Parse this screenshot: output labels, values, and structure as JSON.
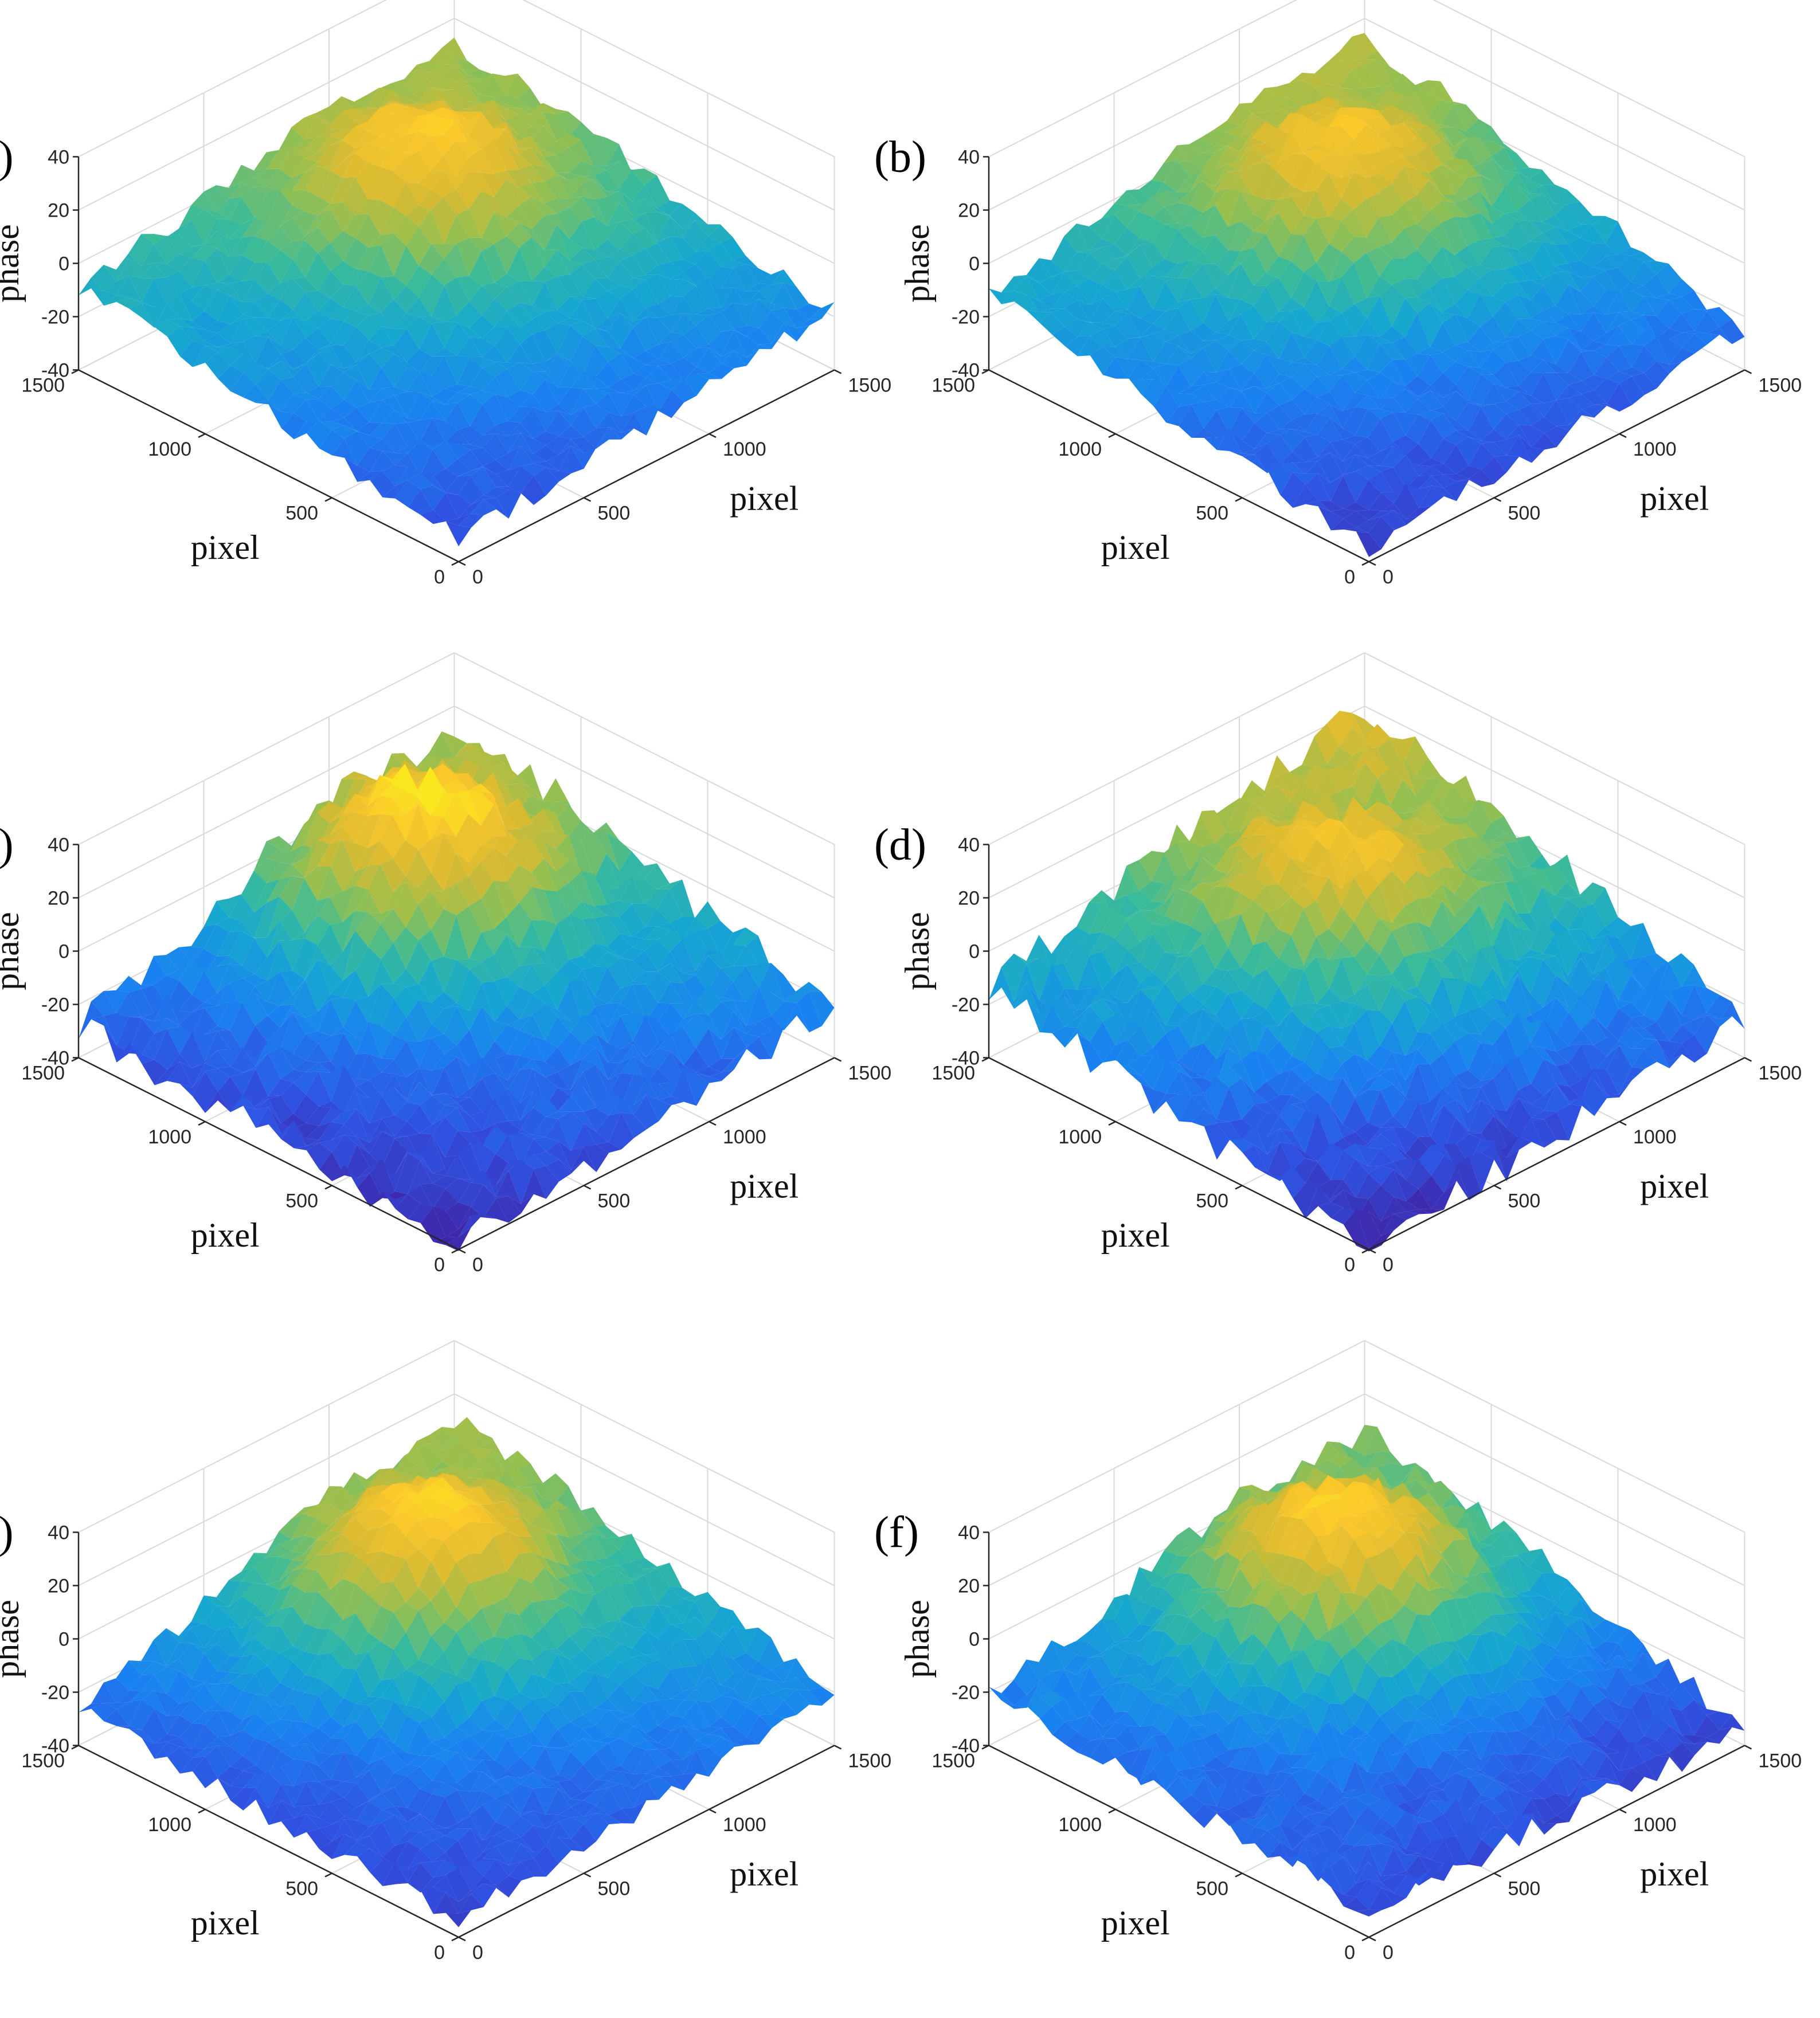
{
  "chart_data": [
    {
      "type": "surface",
      "panel_label": "(a)",
      "xlabel": "pixel",
      "ylabel": "pixel",
      "zlabel": "phase",
      "xlim": [
        0,
        1500
      ],
      "ylim": [
        0,
        1500
      ],
      "zlim": [
        -40,
        40
      ],
      "x_ticks": [
        "0",
        "500",
        "1000",
        "1500"
      ],
      "y_ticks": [
        "0",
        "500",
        "1000",
        "1500"
      ],
      "z_ticks": [
        "-40",
        "-20",
        "0",
        "20",
        "40"
      ],
      "surface": {
        "corner_x0y0": -32,
        "corner_x1y0": -18,
        "corner_x0y1": -8,
        "corner_x1y1": 10,
        "peak_x": 950,
        "peak_y": 1050,
        "peak_z": 28,
        "roughness": 4
      }
    },
    {
      "type": "surface",
      "panel_label": "(b)",
      "xlabel": "pixel",
      "ylabel": "pixel",
      "zlabel": "phase",
      "xlim": [
        0,
        1500
      ],
      "ylim": [
        0,
        1500
      ],
      "zlim": [
        -40,
        40
      ],
      "x_ticks": [
        "0",
        "500",
        "1000",
        "1500"
      ],
      "y_ticks": [
        "0",
        "500",
        "1000",
        "1500"
      ],
      "z_ticks": [
        "-40",
        "-20",
        "0",
        "20",
        "40"
      ],
      "surface": {
        "corner_x0y0": -35,
        "corner_x1y0": -25,
        "corner_x0y1": -12,
        "corner_x1y1": 12,
        "peak_x": 950,
        "peak_y": 1050,
        "peak_z": 26,
        "roughness": 4
      }
    },
    {
      "type": "surface",
      "panel_label": "(c)",
      "xlabel": "pixel",
      "ylabel": "pixel",
      "zlabel": "phase",
      "xlim": [
        0,
        1500
      ],
      "ylim": [
        0,
        1500
      ],
      "zlim": [
        -40,
        40
      ],
      "x_ticks": [
        "0",
        "500",
        "1000",
        "1500"
      ],
      "y_ticks": [
        "0",
        "500",
        "1000",
        "1500"
      ],
      "z_ticks": [
        "-40",
        "-20",
        "0",
        "20",
        "40"
      ],
      "surface": {
        "corner_x0y0": -38,
        "corner_x1y0": -20,
        "corner_x0y1": -28,
        "corner_x1y1": 8,
        "peak_x": 1000,
        "peak_y": 1100,
        "peak_z": 34,
        "roughness": 6
      }
    },
    {
      "type": "surface",
      "panel_label": "(d)",
      "xlabel": "pixel",
      "ylabel": "pixel",
      "zlabel": "phase",
      "xlim": [
        0,
        1500
      ],
      "ylim": [
        0,
        1500
      ],
      "zlim": [
        -40,
        40
      ],
      "x_ticks": [
        "0",
        "500",
        "1000",
        "1500"
      ],
      "y_ticks": [
        "0",
        "500",
        "1000",
        "1500"
      ],
      "z_ticks": [
        "-40",
        "-20",
        "0",
        "20",
        "40"
      ],
      "surface": {
        "corner_x0y0": -40,
        "corner_x1y0": -26,
        "corner_x0y1": -14,
        "corner_x1y1": 20,
        "peak_x": 900,
        "peak_y": 1000,
        "peak_z": 24,
        "roughness": 6
      }
    },
    {
      "type": "surface",
      "panel_label": "(e)",
      "xlabel": "pixel",
      "ylabel": "pixel",
      "zlabel": "phase",
      "xlim": [
        0,
        1500
      ],
      "ylim": [
        0,
        1500
      ],
      "zlim": [
        -40,
        40
      ],
      "x_ticks": [
        "0",
        "500",
        "1000",
        "1500"
      ],
      "y_ticks": [
        "0",
        "500",
        "1000",
        "1500"
      ],
      "z_ticks": [
        "-40",
        "-20",
        "0",
        "20",
        "40"
      ],
      "surface": {
        "corner_x0y0": -34,
        "corner_x1y0": -20,
        "corner_x0y1": -26,
        "corner_x1y1": 10,
        "peak_x": 950,
        "peak_y": 1050,
        "peak_z": 30,
        "roughness": 4
      }
    },
    {
      "type": "surface",
      "panel_label": "(f)",
      "xlabel": "pixel",
      "ylabel": "pixel",
      "zlabel": "phase",
      "xlim": [
        0,
        1500
      ],
      "ylim": [
        0,
        1500
      ],
      "zlim": [
        -40,
        40
      ],
      "x_ticks": [
        "0",
        "500",
        "1000",
        "1500"
      ],
      "y_ticks": [
        "0",
        "500",
        "1000",
        "1500"
      ],
      "z_ticks": [
        "-40",
        "-20",
        "0",
        "20",
        "40"
      ],
      "surface": {
        "corner_x0y0": -30,
        "corner_x1y0": -34,
        "corner_x0y1": -22,
        "corner_x1y1": 6,
        "peak_x": 950,
        "peak_y": 1050,
        "peak_z": 30,
        "roughness": 5
      }
    }
  ],
  "colormap": [
    "#3e26a8",
    "#2f52e2",
    "#1a82f0",
    "#17a7cf",
    "#3bbb99",
    "#93bf52",
    "#d8ba32",
    "#fbc72b",
    "#f9fb15"
  ]
}
